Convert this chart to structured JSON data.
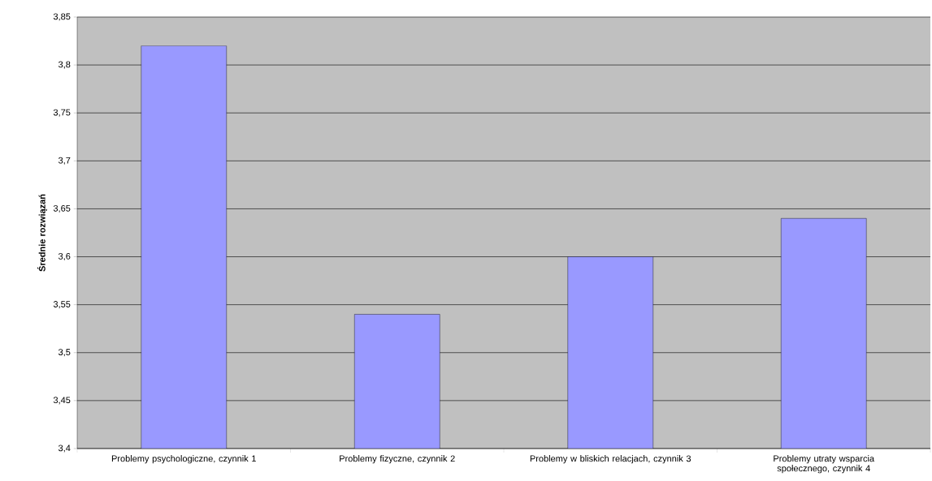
{
  "chart_data": {
    "type": "bar",
    "ylabel": "Średnie rozwiązań",
    "categories": [
      "Problemy psychologiczne, czynnik 1",
      "Problemy fizyczne, czynnik 2",
      "Problemy w bliskich relacjach, czynnik 3",
      "Problemy utraty wsparcia społecznego, czynnik 4"
    ],
    "values": [
      3.82,
      3.54,
      3.6,
      3.64
    ],
    "color": "#9999ff",
    "ylim": [
      3.4,
      3.85
    ],
    "yticks": [
      {
        "value": 3.4,
        "label": "3,4"
      },
      {
        "value": 3.45,
        "label": "3,45"
      },
      {
        "value": 3.5,
        "label": "3,5"
      },
      {
        "value": 3.55,
        "label": "3,55"
      },
      {
        "value": 3.6,
        "label": "3,6"
      },
      {
        "value": 3.65,
        "label": "3,65"
      },
      {
        "value": 3.7,
        "label": "3,7"
      },
      {
        "value": 3.75,
        "label": "3,75"
      },
      {
        "value": 3.8,
        "label": "3,8"
      },
      {
        "value": 3.85,
        "label": "3,85"
      }
    ],
    "grid": "y"
  }
}
